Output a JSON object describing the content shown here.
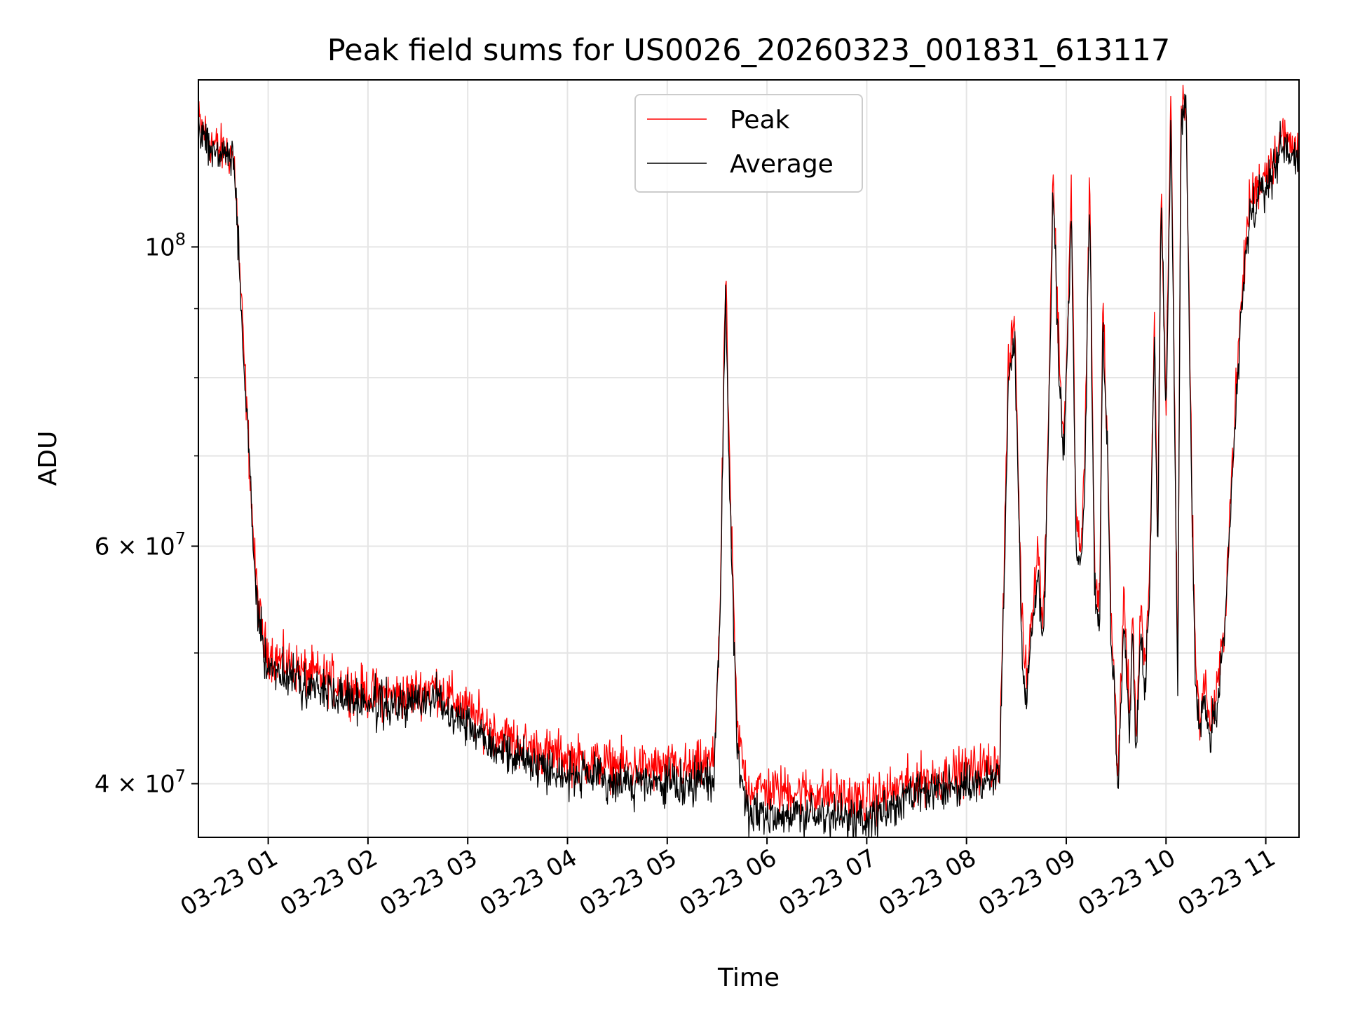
{
  "chart_data": {
    "type": "line",
    "title": "Peak field sums for US0026_20260323_001831_613117",
    "xlabel": "Time",
    "ylabel": "ADU",
    "y_scale": "log",
    "ylim": [
      36500000,
      133000000
    ],
    "xlim": [
      "03-23 00:18",
      "03-23 11:20"
    ],
    "grid": true,
    "legend_position": "upper center",
    "x_ticks": [
      {
        "t": "03-23 01:00",
        "label": "03-23 01"
      },
      {
        "t": "03-23 02:00",
        "label": "03-23 02"
      },
      {
        "t": "03-23 03:00",
        "label": "03-23 03"
      },
      {
        "t": "03-23 04:00",
        "label": "03-23 04"
      },
      {
        "t": "03-23 05:00",
        "label": "03-23 05"
      },
      {
        "t": "03-23 06:00",
        "label": "03-23 06"
      },
      {
        "t": "03-23 07:00",
        "label": "03-23 07"
      },
      {
        "t": "03-23 08:00",
        "label": "03-23 08"
      },
      {
        "t": "03-23 09:00",
        "label": "03-23 09"
      },
      {
        "t": "03-23 10:00",
        "label": "03-23 10"
      },
      {
        "t": "03-23 11:00",
        "label": "03-23 11"
      }
    ],
    "y_ticks": [
      {
        "value": 40000000,
        "base": "4",
        "mult": "×",
        "pow": "10",
        "exp": "7"
      },
      {
        "value": 60000000,
        "base": "6",
        "mult": "×",
        "pow": "10",
        "exp": "7"
      },
      {
        "value": 100000000,
        "base": "",
        "mult": "",
        "pow": "10",
        "exp": "8"
      }
    ],
    "y_minor_ticks": [
      50000000,
      70000000,
      80000000,
      90000000
    ],
    "series": [
      {
        "name": "Peak",
        "color": "#ff0000",
        "noise": 0.018,
        "t": [
          "03-23 00:18",
          "03-23 00:21",
          "03-23 00:30",
          "03-23 00:38",
          "03-23 00:40",
          "03-23 00:44",
          "03-23 00:48",
          "03-23 00:52",
          "03-23 00:55",
          "03-23 00:58",
          "03-23 01:05",
          "03-23 01:20",
          "03-23 01:40",
          "03-23 02:00",
          "03-23 02:20",
          "03-23 02:40",
          "03-23 03:00",
          "03-23 03:20",
          "03-23 03:40",
          "03-23 04:00",
          "03-23 04:30",
          "03-23 05:00",
          "03-23 05:15",
          "03-23 05:28",
          "03-23 05:32",
          "03-23 05:35",
          "03-23 05:38",
          "03-23 05:42",
          "03-23 05:48",
          "03-23 06:00",
          "03-23 06:30",
          "03-23 07:00",
          "03-23 07:30",
          "03-23 08:00",
          "03-23 08:20",
          "03-23 08:25",
          "03-23 08:29",
          "03-23 08:33",
          "03-23 08:36",
          "03-23 08:40",
          "03-23 08:43",
          "03-23 08:46",
          "03-23 08:49",
          "03-23 08:52",
          "03-23 08:55",
          "03-23 08:58",
          "03-23 09:00",
          "03-23 09:03",
          "03-23 09:06",
          "03-23 09:09",
          "03-23 09:11",
          "03-23 09:14",
          "03-23 09:17",
          "03-23 09:20",
          "03-23 09:22",
          "03-23 09:25",
          "03-23 09:27",
          "03-23 09:29",
          "03-23 09:31",
          "03-23 09:33",
          "03-23 09:35",
          "03-23 09:38",
          "03-23 09:40",
          "03-23 09:42",
          "03-23 09:45",
          "03-23 09:47",
          "03-23 09:50",
          "03-23 09:53",
          "03-23 09:55",
          "03-23 09:57",
          "03-23 10:00",
          "03-23 10:03",
          "03-23 10:05",
          "03-23 10:07",
          "03-23 10:09",
          "03-23 10:12",
          "03-23 10:14",
          "03-23 10:16",
          "03-23 10:18",
          "03-23 10:20",
          "03-23 10:23",
          "03-23 10:26",
          "03-23 10:30",
          "03-23 10:35",
          "03-23 10:40",
          "03-23 10:45",
          "03-23 10:50",
          "03-23 10:55",
          "03-23 11:00",
          "03-23 11:05",
          "03-23 11:09",
          "03-23 11:12",
          "03-23 11:15",
          "03-23 11:20"
        ],
        "values": [
          124000000,
          122000000,
          118000000,
          117500000,
          114000000,
          90000000,
          72000000,
          58000000,
          53000000,
          50500000,
          49500000,
          48500000,
          47600000,
          46700000,
          46400000,
          47300000,
          45300000,
          43400000,
          42400000,
          41800000,
          41200000,
          41000000,
          41000000,
          41500000,
          55000000,
          96000000,
          65000000,
          44000000,
          39800000,
          39600000,
          39400000,
          38800000,
          40200000,
          40800000,
          41500000,
          80000000,
          89000000,
          54000000,
          48000000,
          55000000,
          60000000,
          52000000,
          72000000,
          114000000,
          88000000,
          72000000,
          80000000,
          110000000,
          62000000,
          60000000,
          68000000,
          113000000,
          58000000,
          54000000,
          92000000,
          70000000,
          52000000,
          48000000,
          40500000,
          48000000,
          55000000,
          45000000,
          54000000,
          43000000,
          54000000,
          48000000,
          56000000,
          88000000,
          60000000,
          112000000,
          76000000,
          131000000,
          80000000,
          48000000,
          126000000,
          130000000,
          88000000,
          62000000,
          48000000,
          44500000,
          48000000,
          44500000,
          46000000,
          52000000,
          70000000,
          90000000,
          108000000,
          111000000,
          114000000,
          116000000,
          121000000,
          120000000,
          119000000,
          118500000
        ]
      },
      {
        "name": "Average",
        "color": "#000000",
        "noise": 0.016,
        "t": [
          "03-23 00:18",
          "03-23 00:21",
          "03-23 00:30",
          "03-23 00:38",
          "03-23 00:40",
          "03-23 00:44",
          "03-23 00:48",
          "03-23 00:52",
          "03-23 00:55",
          "03-23 00:58",
          "03-23 01:05",
          "03-23 01:20",
          "03-23 01:40",
          "03-23 02:00",
          "03-23 02:20",
          "03-23 02:40",
          "03-23 03:00",
          "03-23 03:20",
          "03-23 03:40",
          "03-23 04:00",
          "03-23 04:30",
          "03-23 05:00",
          "03-23 05:15",
          "03-23 05:28",
          "03-23 05:32",
          "03-23 05:35",
          "03-23 05:38",
          "03-23 05:42",
          "03-23 05:48",
          "03-23 06:00",
          "03-23 06:30",
          "03-23 07:00",
          "03-23 07:30",
          "03-23 08:00",
          "03-23 08:20",
          "03-23 08:25",
          "03-23 08:29",
          "03-23 08:33",
          "03-23 08:36",
          "03-23 08:40",
          "03-23 08:43",
          "03-23 08:46",
          "03-23 08:49",
          "03-23 08:52",
          "03-23 08:55",
          "03-23 08:58",
          "03-23 09:00",
          "03-23 09:03",
          "03-23 09:06",
          "03-23 09:09",
          "03-23 09:11",
          "03-23 09:14",
          "03-23 09:17",
          "03-23 09:20",
          "03-23 09:22",
          "03-23 09:25",
          "03-23 09:27",
          "03-23 09:29",
          "03-23 09:31",
          "03-23 09:33",
          "03-23 09:35",
          "03-23 09:38",
          "03-23 09:40",
          "03-23 09:42",
          "03-23 09:45",
          "03-23 09:47",
          "03-23 09:50",
          "03-23 09:53",
          "03-23 09:55",
          "03-23 09:57",
          "03-23 10:00",
          "03-23 10:03",
          "03-23 10:05",
          "03-23 10:07",
          "03-23 10:09",
          "03-23 10:12",
          "03-23 10:14",
          "03-23 10:16",
          "03-23 10:18",
          "03-23 10:20",
          "03-23 10:23",
          "03-23 10:26",
          "03-23 10:30",
          "03-23 10:35",
          "03-23 10:40",
          "03-23 10:45",
          "03-23 10:50",
          "03-23 10:55",
          "03-23 11:00",
          "03-23 11:05",
          "03-23 11:09",
          "03-23 11:12",
          "03-23 11:15",
          "03-23 11:20"
        ],
        "values": [
          123000000,
          121000000,
          117000000,
          116500000,
          113000000,
          89000000,
          71000000,
          57000000,
          52000000,
          49500000,
          48500000,
          47500000,
          46600000,
          45900000,
          45600000,
          46400000,
          44400000,
          42400000,
          41400000,
          40600000,
          40100000,
          39900000,
          39900000,
          40400000,
          54000000,
          94000000,
          63000000,
          42500000,
          38200000,
          38000000,
          37900000,
          37500000,
          39200000,
          39800000,
          40500000,
          78000000,
          86000000,
          52000000,
          46000000,
          53000000,
          58000000,
          50000000,
          70000000,
          111000000,
          85000000,
          70000000,
          78000000,
          107000000,
          60000000,
          58000000,
          66000000,
          110000000,
          56000000,
          52000000,
          89000000,
          68000000,
          50000000,
          46500000,
          39300000,
          46500000,
          53000000,
          43500000,
          52500000,
          41800000,
          52500000,
          46500000,
          54500000,
          86000000,
          58500000,
          110000000,
          74000000,
          128000000,
          78000000,
          46500000,
          123000000,
          128000000,
          86000000,
          60000000,
          46500000,
          43300000,
          46500000,
          43300000,
          44800000,
          50500000,
          68000000,
          88000000,
          105000000,
          108000000,
          111000000,
          114000000,
          119000000,
          118000000,
          117500000,
          117000000
        ]
      }
    ]
  }
}
